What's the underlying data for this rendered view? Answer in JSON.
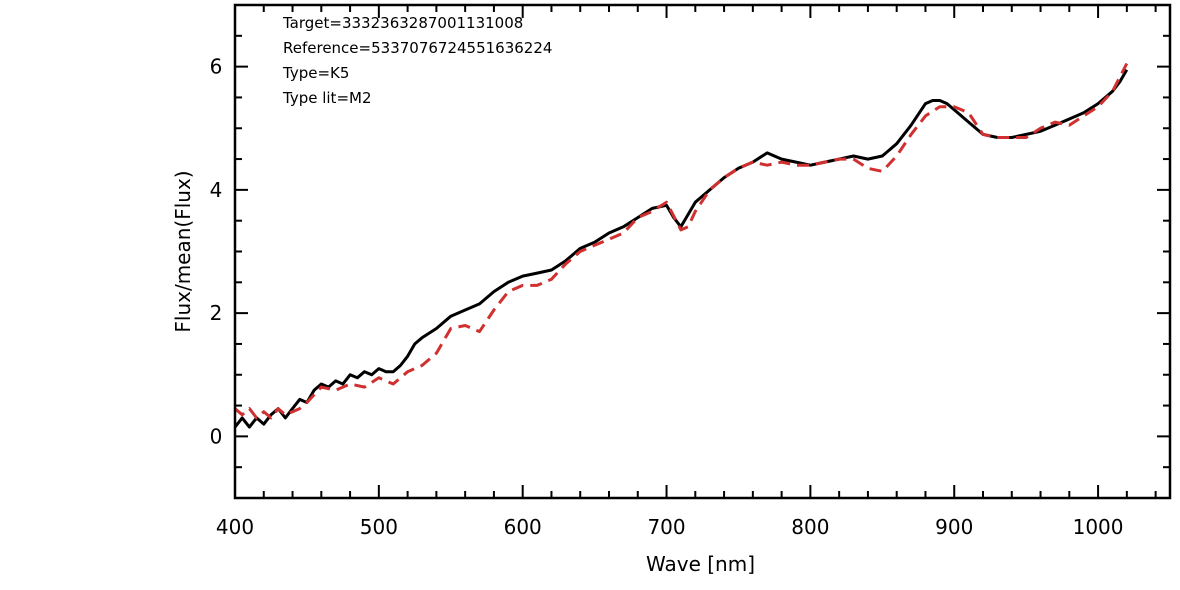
{
  "chart_data": {
    "type": "line",
    "title": "",
    "xlabel": "Wave [nm]",
    "ylabel": "Flux/mean(Flux)",
    "xlim": [
      400,
      1050
    ],
    "ylim": [
      -1,
      7
    ],
    "xticks": [
      400,
      500,
      600,
      700,
      800,
      900,
      1000
    ],
    "yticks": [
      0,
      2,
      4,
      6
    ],
    "grid": false,
    "legend": "none",
    "annotations": [
      "Target=3332363287001131008",
      "Reference=5337076724551636224",
      "Type=K5",
      "Type lit=M2"
    ],
    "series": [
      {
        "color": "#000000",
        "dash": "solid",
        "x": [
          400,
          405,
          410,
          415,
          420,
          425,
          430,
          435,
          440,
          445,
          450,
          455,
          460,
          465,
          470,
          475,
          480,
          485,
          490,
          495,
          500,
          505,
          510,
          515,
          520,
          525,
          530,
          540,
          550,
          560,
          570,
          580,
          590,
          600,
          610,
          620,
          630,
          640,
          650,
          660,
          670,
          680,
          690,
          700,
          705,
          710,
          715,
          720,
          730,
          740,
          750,
          760,
          770,
          775,
          780,
          790,
          800,
          810,
          820,
          830,
          840,
          850,
          860,
          870,
          880,
          885,
          890,
          895,
          900,
          910,
          920,
          930,
          940,
          950,
          960,
          970,
          980,
          990,
          1000,
          1010,
          1015,
          1020
        ],
        "y": [
          0.15,
          0.3,
          0.15,
          0.3,
          0.2,
          0.35,
          0.45,
          0.3,
          0.45,
          0.6,
          0.55,
          0.75,
          0.85,
          0.8,
          0.9,
          0.85,
          1.0,
          0.95,
          1.05,
          1.0,
          1.1,
          1.05,
          1.05,
          1.15,
          1.3,
          1.5,
          1.6,
          1.75,
          1.95,
          2.05,
          2.15,
          2.35,
          2.5,
          2.6,
          2.65,
          2.7,
          2.85,
          3.05,
          3.15,
          3.3,
          3.4,
          3.55,
          3.7,
          3.75,
          3.55,
          3.4,
          3.6,
          3.8,
          4.0,
          4.2,
          4.35,
          4.45,
          4.6,
          4.55,
          4.5,
          4.45,
          4.4,
          4.45,
          4.5,
          4.55,
          4.5,
          4.55,
          4.75,
          5.05,
          5.4,
          5.45,
          5.45,
          5.4,
          5.3,
          5.1,
          4.9,
          4.85,
          4.85,
          4.9,
          4.95,
          5.05,
          5.15,
          5.25,
          5.4,
          5.6,
          5.75,
          5.95
        ]
      },
      {
        "color": "#d03030",
        "dash": "dashed",
        "x": [
          400,
          405,
          410,
          415,
          420,
          425,
          430,
          435,
          440,
          445,
          450,
          460,
          470,
          480,
          490,
          500,
          510,
          520,
          530,
          540,
          550,
          560,
          570,
          580,
          590,
          600,
          610,
          620,
          630,
          640,
          650,
          660,
          670,
          680,
          690,
          700,
          710,
          715,
          720,
          730,
          740,
          750,
          760,
          770,
          780,
          790,
          800,
          810,
          820,
          830,
          840,
          850,
          860,
          870,
          880,
          890,
          900,
          910,
          920,
          930,
          940,
          950,
          960,
          970,
          980,
          990,
          1000,
          1010,
          1020
        ],
        "y": [
          0.45,
          0.35,
          0.45,
          0.3,
          0.4,
          0.3,
          0.45,
          0.35,
          0.4,
          0.45,
          0.55,
          0.8,
          0.75,
          0.85,
          0.8,
          0.95,
          0.85,
          1.05,
          1.15,
          1.35,
          1.75,
          1.8,
          1.7,
          2.05,
          2.35,
          2.45,
          2.45,
          2.55,
          2.8,
          3.0,
          3.1,
          3.2,
          3.3,
          3.55,
          3.65,
          3.8,
          3.35,
          3.4,
          3.65,
          4.0,
          4.2,
          4.35,
          4.45,
          4.4,
          4.45,
          4.4,
          4.4,
          4.45,
          4.5,
          4.5,
          4.35,
          4.3,
          4.55,
          4.9,
          5.2,
          5.35,
          5.35,
          5.25,
          4.9,
          4.85,
          4.85,
          4.85,
          5.0,
          5.1,
          5.05,
          5.2,
          5.35,
          5.6,
          6.05
        ]
      }
    ]
  }
}
